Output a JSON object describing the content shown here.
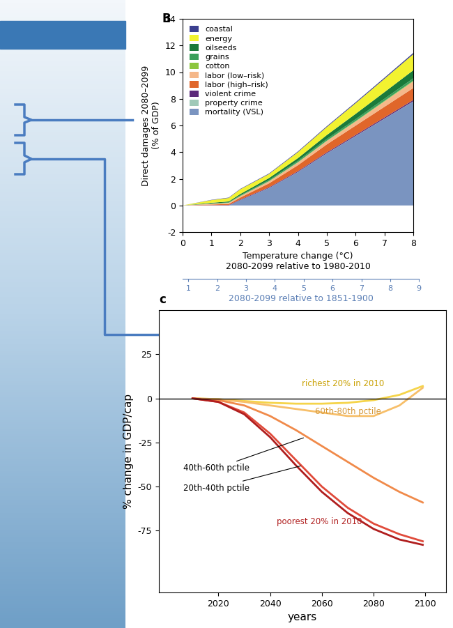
{
  "chart_data": [
    {
      "type": "area",
      "title": "B",
      "stacked": true,
      "x": [
        0,
        1,
        1.6,
        2,
        3,
        4,
        5,
        6,
        7,
        8
      ],
      "xlim": [
        0,
        8
      ],
      "xticks": [
        0,
        1,
        2,
        3,
        4,
        5,
        6,
        7,
        8
      ],
      "ylim": [
        -2,
        14
      ],
      "yticks": [
        -2,
        0,
        2,
        4,
        6,
        8,
        10,
        12,
        14
      ],
      "xlabel": "Temperature change (°C)\n2080-2099 relative to 1980-2010",
      "ylabel": "Direct damages 2080–2099\n(% of GDP)",
      "x2lim": [
        0.8,
        9.0
      ],
      "x2ticks": [
        1,
        2,
        3,
        4,
        5,
        6,
        7,
        8,
        9
      ],
      "x2label": "2080-2099 relative to 1851-1900",
      "legend": "upper left",
      "series": [
        {
          "name": "coastal",
          "color": "#3b3f8f",
          "values": [
            0,
            0.02,
            0.03,
            0.03,
            0.04,
            0.05,
            0.06,
            0.07,
            0.08,
            0.1
          ]
        },
        {
          "name": "energy",
          "color": "#f2f230",
          "values": [
            0,
            0.2,
            0.26,
            0.35,
            0.3,
            0.45,
            0.6,
            0.8,
            1.0,
            1.2
          ]
        },
        {
          "name": "oilseeds",
          "color": "#1a7a3a",
          "values": [
            0,
            0.05,
            0.07,
            0.1,
            0.15,
            0.2,
            0.3,
            0.4,
            0.5,
            0.6
          ]
        },
        {
          "name": "grains",
          "color": "#3aa05a",
          "values": [
            0,
            0.02,
            0.03,
            0.05,
            0.08,
            0.1,
            0.12,
            0.14,
            0.16,
            0.18
          ]
        },
        {
          "name": "cotton",
          "color": "#8cc63f",
          "values": [
            0,
            0.01,
            0.01,
            0.02,
            0.02,
            0.03,
            0.03,
            0.04,
            0.04,
            0.05
          ]
        },
        {
          "name": "labor (low–risk)",
          "color": "#f5b88a",
          "values": [
            0,
            0.05,
            0.08,
            0.1,
            0.15,
            0.2,
            0.25,
            0.3,
            0.4,
            0.5
          ]
        },
        {
          "name": "labor (high–risk)",
          "color": "#e0662a",
          "values": [
            0,
            0.05,
            0.08,
            0.15,
            0.3,
            0.45,
            0.6,
            0.7,
            0.8,
            0.9
          ]
        },
        {
          "name": "violent crime",
          "color": "#5c2a7a",
          "values": [
            0,
            0.02,
            0.03,
            0.04,
            0.05,
            0.06,
            0.07,
            0.08,
            0.09,
            0.1
          ]
        },
        {
          "name": "property crime",
          "color": "#9fc9b8",
          "values": [
            0,
            0,
            0,
            0,
            0.01,
            0.01,
            0.01,
            0.01,
            0.01,
            0.01
          ]
        },
        {
          "name": "mortality (VSL)",
          "color": "#7a94c0",
          "values": [
            0,
            0,
            0,
            0.4,
            1.3,
            2.5,
            3.9,
            5.2,
            6.5,
            7.8
          ]
        }
      ]
    },
    {
      "type": "line",
      "title": "c",
      "x": [
        2010,
        2020,
        2030,
        2040,
        2050,
        2060,
        2070,
        2080,
        2090,
        2099
      ],
      "xlim": [
        1997,
        2108
      ],
      "xticks": [
        2020,
        2040,
        2060,
        2080,
        2100
      ],
      "ylim": [
        -110,
        50
      ],
      "yticks": [
        25,
        0,
        -25,
        -50,
        -75
      ],
      "xlabel": "years",
      "ylabel": "% change in GDP/cap",
      "hline": 0,
      "series": [
        {
          "name": "richest 20% in 2010",
          "color": "#f5d44a",
          "values": [
            0,
            -0.5,
            -1.5,
            -2.5,
            -3,
            -3,
            -2.5,
            -1,
            2,
            7
          ]
        },
        {
          "name": "60th-80th pctile",
          "color": "#f7bf6a",
          "values": [
            0,
            -0.5,
            -2,
            -4,
            -6,
            -8,
            -10,
            -10,
            -4,
            6
          ]
        },
        {
          "name": "40th-60th pctile",
          "color": "#f08a4a",
          "values": [
            0,
            -1,
            -4,
            -10,
            -18,
            -27,
            -36,
            -45,
            -53,
            -59
          ]
        },
        {
          "name": "20th-40th pctile",
          "color": "#e04a3a",
          "values": [
            0,
            -2,
            -8,
            -20,
            -35,
            -50,
            -62,
            -71,
            -77,
            -81
          ]
        },
        {
          "name": "poorest 20% in 2010",
          "color": "#b01e1e",
          "values": [
            0,
            -2,
            -9,
            -22,
            -38,
            -53,
            -65,
            -74,
            -80,
            -83
          ]
        }
      ]
    }
  ]
}
